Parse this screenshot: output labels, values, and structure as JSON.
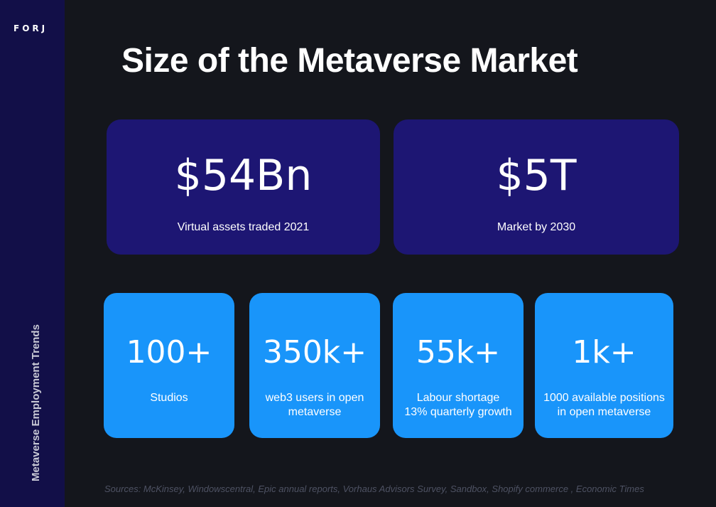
{
  "sidebar": {
    "logo": "FORJ",
    "vertical_title": "Metaverse Employment Trends"
  },
  "title": "Size of the Metaverse Market",
  "big_stats": [
    {
      "value": "$54Bn",
      "label": "Virtual assets traded 2021"
    },
    {
      "value": "$5T",
      "label": "Market by 2030"
    }
  ],
  "small_stats": [
    {
      "value": "100+",
      "label": "Studios"
    },
    {
      "value": "350k+",
      "label": "web3 users in open\nmetaverse"
    },
    {
      "value": "55k+",
      "label": "Labour shortage\n13% quarterly growth"
    },
    {
      "value": "1k+",
      "label": "1000 available positions\nin open metaverse"
    }
  ],
  "sources": "Sources: McKinsey, Windowscentral, Epic annual reports, Vorhaus Advisors Survey, Sandbox, Shopify commerce , Economic Times",
  "colors": {
    "background": "#14161c",
    "sidebar": "#120f48",
    "big_card": "#1d1673",
    "small_card": "#1995fa"
  }
}
